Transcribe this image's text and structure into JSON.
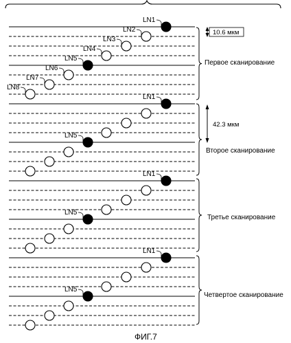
{
  "figure": {
    "caption": "ФИГ.7",
    "scan_labels": [
      "Первое сканирование",
      "Второе сканирование",
      "Третье сканирование",
      "Четвертое сканирование"
    ],
    "measurements": {
      "pitch": "10.6 мкм",
      "scan_shift": "42.3 мкм"
    },
    "line_labels": [
      "LN1",
      "LN2",
      "LN3",
      "LN4",
      "LN5",
      "LN6",
      "LN7",
      "LN8"
    ],
    "scans": [
      {
        "labels_shown": [
          "LN1",
          "LN2",
          "LN3",
          "LN4",
          "LN5",
          "LN6",
          "LN7",
          "LN8"
        ]
      },
      {
        "labels_shown": [
          "LN1",
          "LN5"
        ]
      },
      {
        "labels_shown": [
          "LN1",
          "LN5"
        ]
      },
      {
        "labels_shown": [
          "LN1",
          "LN5"
        ]
      }
    ],
    "filled_dot_lines": [
      "LN1",
      "LN5"
    ]
  }
}
